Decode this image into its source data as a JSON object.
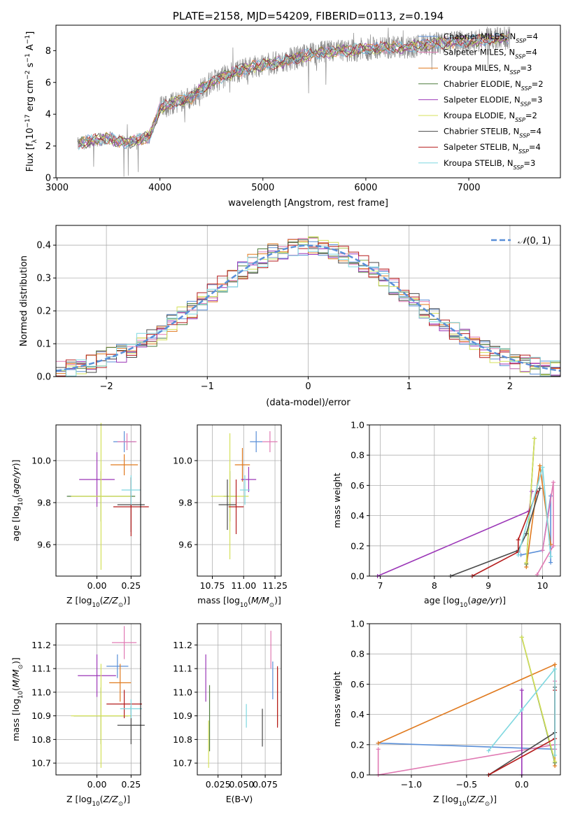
{
  "colors": {
    "Chabrier MILES": "#5a8fd8",
    "Salpeter MILES": "#e07ab3",
    "Kroupa MILES": "#e07a1f",
    "Chabrier ELODIE": "#4e7d3c",
    "Salpeter ELODIE": "#9b36b7",
    "Kroupa ELODIE": "#d4e05a",
    "Chabrier STELIB": "#4a4a4a",
    "Salpeter STELIB": "#b51c1c",
    "Kroupa STELIB": "#7fd8e0",
    "data": "#8a8a8a",
    "normal": "#5a8fd8"
  },
  "chart_data": [
    {
      "type": "line",
      "title": "PLATE=2158, MJD=54209, FIBERID=0113, z=0.194",
      "xlabel": "wavelength [Angstrom, rest frame]",
      "ylabel": "Flux [f_λ 10^{-17} erg cm^{-2} s^{-1} A^{-1}]",
      "xlim": [
        2990,
        7890
      ],
      "ylim": [
        0,
        9.6
      ],
      "xticks": [
        3000,
        4000,
        5000,
        6000,
        7000
      ],
      "yticks": [
        0,
        2,
        4,
        6,
        8
      ],
      "legend_position": "right",
      "continuum": {
        "x": [
          3200,
          3300,
          3400,
          3500,
          3600,
          3700,
          3800,
          3900,
          4000,
          4100,
          4200,
          4300,
          4400,
          4500,
          4600,
          4700,
          4800,
          4900,
          5000,
          5200,
          5400,
          5600,
          5800,
          6000,
          6200,
          6400,
          6600,
          6800,
          7000,
          7200,
          7400
        ],
        "y": [
          2.1,
          2.3,
          2.4,
          2.5,
          2.3,
          2.2,
          2.4,
          2.6,
          4.4,
          4.6,
          4.9,
          5.0,
          5.6,
          6.0,
          6.3,
          6.6,
          6.8,
          7.0,
          7.1,
          7.3,
          7.7,
          7.9,
          8.0,
          8.1,
          8.2,
          8.2,
          8.4,
          8.5,
          8.6,
          8.7,
          8.8
        ]
      },
      "series": [
        {
          "name": "Chabrier MILES, N_SSP=4"
        },
        {
          "name": "Salpeter MILES, N_SSP=4"
        },
        {
          "name": "Kroupa MILES, N_SSP=3"
        },
        {
          "name": "Chabrier ELODIE, N_SSP=2"
        },
        {
          "name": "Salpeter ELODIE, N_SSP=3"
        },
        {
          "name": "Kroupa ELODIE, N_SSP=2"
        },
        {
          "name": "Chabrier STELIB, N_SSP=4"
        },
        {
          "name": "Salpeter STELIB, N_SSP=4"
        },
        {
          "name": "Kroupa STELIB, N_SSP=3"
        }
      ]
    },
    {
      "type": "bar",
      "xlabel": "(data-model)/error",
      "ylabel": "Normed distribution",
      "xlim": [
        -2.5,
        2.5
      ],
      "ylim": [
        0,
        0.46
      ],
      "xticks": [
        -2,
        -1,
        0,
        1,
        2
      ],
      "yticks": [
        0.0,
        0.1,
        0.2,
        0.3,
        0.4
      ],
      "legend": "N(0,1)",
      "bin_width": 0.1,
      "grid": true
    },
    {
      "type": "scatter",
      "xlabel": "Z [log10(Z/Z_sun)]",
      "ylabel": "age  [log10(age/yr)]",
      "xlim": [
        -0.3,
        0.32
      ],
      "ylim": [
        9.45,
        10.17
      ],
      "xticks": [
        0.0,
        0.25
      ],
      "yticks": [
        9.6,
        9.8,
        10.0
      ],
      "points": [
        {
          "x": 0.2,
          "y": 10.09,
          "xerr": 0.08,
          "yerr": 0.05
        },
        {
          "x": 0.22,
          "y": 10.09,
          "xerr": 0.07,
          "yerr": 0.04
        },
        {
          "x": 0.2,
          "y": 9.98,
          "xerr": 0.1,
          "yerr": 0.05
        },
        {
          "x": 0.03,
          "y": 9.83,
          "xerr": 0.25,
          "yerr": 0.12
        },
        {
          "x": 0.0,
          "y": 9.91,
          "xerr": 0.13,
          "yerr": 0.13
        },
        {
          "x": 0.03,
          "y": 9.83,
          "xerr": 0.22,
          "yerr": 0.35
        },
        {
          "x": 0.25,
          "y": 9.79,
          "xerr": 0.1,
          "yerr": 0.13
        },
        {
          "x": 0.25,
          "y": 9.78,
          "xerr": 0.13,
          "yerr": 0.14
        },
        {
          "x": 0.25,
          "y": 9.86,
          "xerr": 0.07,
          "yerr": 0.07
        }
      ]
    },
    {
      "type": "scatter",
      "xlabel": "mass [log10(M/M_sun)]",
      "ylabel": "",
      "xlim": [
        10.63,
        11.3
      ],
      "ylim": [
        9.45,
        10.17
      ],
      "xticks": [
        10.75,
        11.0,
        11.25
      ],
      "yticks": [
        9.6,
        9.8,
        10.0
      ],
      "points": [
        {
          "x": 11.1,
          "y": 10.09,
          "xerr": 0.05,
          "yerr": 0.05
        },
        {
          "x": 11.21,
          "y": 10.09,
          "xerr": 0.06,
          "yerr": 0.05
        },
        {
          "x": 10.99,
          "y": 9.98,
          "xerr": 0.06,
          "yerr": 0.08
        },
        {
          "x": 10.89,
          "y": 9.83,
          "xerr": 0.05,
          "yerr": 0.12
        },
        {
          "x": 11.04,
          "y": 9.91,
          "xerr": 0.06,
          "yerr": 0.06
        },
        {
          "x": 10.89,
          "y": 9.83,
          "xerr": 0.15,
          "yerr": 0.3
        },
        {
          "x": 10.87,
          "y": 9.79,
          "xerr": 0.07,
          "yerr": 0.12
        },
        {
          "x": 10.94,
          "y": 9.78,
          "xerr": 0.06,
          "yerr": 0.13
        },
        {
          "x": 11.01,
          "y": 9.86,
          "xerr": 0.04,
          "yerr": 0.07
        }
      ]
    },
    {
      "type": "line",
      "xlabel": "age  [log10(age/yr)]",
      "ylabel": "mass weight",
      "xlim": [
        6.8,
        10.33
      ],
      "ylim": [
        0,
        1.0
      ],
      "xticks": [
        7,
        8,
        9,
        10
      ],
      "yticks": [
        0.0,
        0.2,
        0.4,
        0.6,
        0.8,
        1.0
      ],
      "series": [
        {
          "name": "Chabrier MILES",
          "x": [
            9.6,
            10.0,
            10.15,
            10.15
          ],
          "y": [
            0.14,
            0.17,
            0.53,
            0.09
          ]
        },
        {
          "name": "Salpeter MILES",
          "x": [
            10.0,
            10.2,
            10.2,
            9.9
          ],
          "y": [
            0.17,
            0.62,
            0.2,
            0.01
          ]
        },
        {
          "name": "Kroupa MILES",
          "x": [
            9.7,
            9.95,
            10.15
          ],
          "y": [
            0.06,
            0.73,
            0.21
          ]
        },
        {
          "name": "Chabrier ELODIE",
          "x": [
            9.7,
            9.85
          ],
          "y": [
            0.08,
            0.91
          ]
        },
        {
          "name": "Salpeter ELODIE",
          "x": [
            6.95,
            9.75,
            9.8
          ],
          "y": [
            0.0,
            0.43,
            0.56
          ]
        },
        {
          "name": "Kroupa ELODIE",
          "x": [
            9.7,
            9.85
          ],
          "y": [
            0.09,
            0.91
          ]
        },
        {
          "name": "Chabrier STELIB",
          "x": [
            8.3,
            9.55,
            9.7,
            9.95
          ],
          "y": [
            0.0,
            0.17,
            0.28,
            0.58
          ]
        },
        {
          "name": "Salpeter STELIB",
          "x": [
            8.7,
            9.55,
            9.55,
            9.9
          ],
          "y": [
            0.0,
            0.16,
            0.24,
            0.56
          ]
        },
        {
          "name": "Kroupa STELIB",
          "x": [
            9.55,
            10.0,
            10.15
          ],
          "y": [
            0.14,
            0.72,
            0.13
          ]
        }
      ]
    },
    {
      "type": "scatter",
      "xlabel": "Z [log10(Z/Z_sun)]",
      "ylabel": "mass [log10(M/M_sun)]",
      "xlim": [
        -0.3,
        0.32
      ],
      "ylim": [
        10.65,
        11.29
      ],
      "xticks": [
        0.0,
        0.25
      ],
      "yticks": [
        10.7,
        10.8,
        10.9,
        11.0,
        11.1,
        11.2
      ],
      "points": [
        {
          "x": 0.15,
          "y": 11.11,
          "xerr": 0.08,
          "yerr": 0.05
        },
        {
          "x": 0.2,
          "y": 11.21,
          "xerr": 0.09,
          "yerr": 0.07
        },
        {
          "x": 0.17,
          "y": 11.04,
          "xerr": 0.08,
          "yerr": 0.08
        },
        {
          "x": 0.03,
          "y": 10.9,
          "xerr": 0.2,
          "yerr": 0.12
        },
        {
          "x": 0.0,
          "y": 11.07,
          "xerr": 0.14,
          "yerr": 0.09
        },
        {
          "x": 0.03,
          "y": 10.9,
          "xerr": 0.22,
          "yerr": 0.22
        },
        {
          "x": 0.25,
          "y": 10.86,
          "xerr": 0.1,
          "yerr": 0.08
        },
        {
          "x": 0.2,
          "y": 10.95,
          "xerr": 0.13,
          "yerr": 0.06
        },
        {
          "x": 0.25,
          "y": 10.93,
          "xerr": 0.08,
          "yerr": 0.04
        }
      ]
    },
    {
      "type": "scatter",
      "xlabel": "E(B-V)",
      "ylabel": "",
      "xlim": [
        0.003,
        0.092
      ],
      "ylim": [
        10.65,
        11.29
      ],
      "xticks": [
        0.025,
        0.05,
        0.075
      ],
      "xtick_labels": [
        "0.025",
        "0.050",
        "0.075"
      ],
      "yticks": [
        10.7,
        10.8,
        10.9,
        11.0,
        11.1,
        11.2
      ],
      "points": [
        {
          "x": 0.083,
          "y": 11.05,
          "yerr": 0.08
        },
        {
          "x": 0.081,
          "y": 11.18,
          "yerr": 0.08
        },
        {
          "x": 0.088,
          "y": 10.98,
          "yerr": 0.12
        },
        {
          "x": 0.016,
          "y": 10.89,
          "yerr": 0.14
        },
        {
          "x": 0.012,
          "y": 11.06,
          "yerr": 0.1
        },
        {
          "x": 0.015,
          "y": 10.78,
          "yerr": 0.1
        },
        {
          "x": 0.072,
          "y": 10.85,
          "yerr": 0.08
        },
        {
          "x": 0.088,
          "y": 10.98,
          "yerr": 0.13
        },
        {
          "x": 0.055,
          "y": 10.9,
          "yerr": 0.05
        }
      ]
    },
    {
      "type": "line",
      "xlabel": "Z [log10(Z/Z_sun)]",
      "ylabel": "mass weight",
      "xlim": [
        -1.38,
        0.35
      ],
      "ylim": [
        0,
        1.0
      ],
      "xticks": [
        -1.0,
        -0.5,
        0.0
      ],
      "yticks": [
        0.0,
        0.2,
        0.4,
        0.6,
        0.8,
        1.0
      ],
      "series": [
        {
          "name": "Chabrier MILES",
          "x": [
            -1.3,
            0.3
          ],
          "y": [
            0.21,
            0.17
          ]
        },
        {
          "name": "Salpeter MILES",
          "x": [
            -1.3,
            -1.3,
            0.3,
            0.3,
            0.3
          ],
          "y": [
            0.17,
            0.0,
            0.2,
            0.62,
            0.17
          ]
        },
        {
          "name": "Kroupa MILES",
          "x": [
            -1.3,
            0.3,
            0.3
          ],
          "y": [
            0.21,
            0.73,
            0.06
          ]
        },
        {
          "name": "Chabrier ELODIE",
          "x": [
            0.0,
            0.3
          ],
          "y": [
            0.91,
            0.08
          ]
        },
        {
          "name": "Salpeter ELODIE",
          "x": [
            0.0,
            0.0
          ],
          "y": [
            0.56,
            0.0
          ]
        },
        {
          "name": "Kroupa ELODIE",
          "x": [
            0.0,
            0.3
          ],
          "y": [
            0.91,
            0.09
          ]
        },
        {
          "name": "Chabrier STELIB",
          "x": [
            -0.3,
            0.3,
            0.3
          ],
          "y": [
            0.0,
            0.28,
            0.58
          ]
        },
        {
          "name": "Salpeter STELIB",
          "x": [
            -0.3,
            0.3,
            0.3
          ],
          "y": [
            0.0,
            0.24,
            0.56
          ]
        },
        {
          "name": "Kroupa STELIB",
          "x": [
            -0.3,
            0.0,
            0.3,
            0.3
          ],
          "y": [
            0.16,
            0.43,
            0.7,
            0.13
          ]
        }
      ]
    }
  ]
}
